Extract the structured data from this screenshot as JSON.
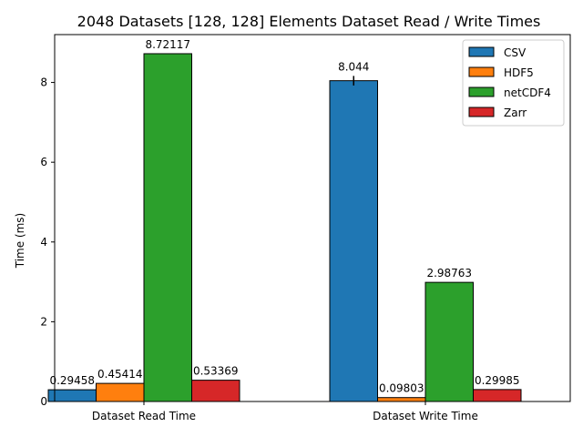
{
  "chart_data": {
    "type": "bar",
    "title": "2048 Datasets [128, 128] Elements Dataset Read / Write Times",
    "xlabel": "",
    "ylabel": "Time (ms)",
    "ylim": [
      0,
      9.2
    ],
    "yticks": [
      "0",
      "2",
      "4",
      "6",
      "8"
    ],
    "grid": false,
    "legend_position": "top-right",
    "categories": [
      "Dataset Read Time",
      "Dataset Write Time"
    ],
    "series": [
      {
        "name": "CSV",
        "color": "#1f77b4",
        "values": [
          0.29458,
          8.044
        ],
        "labels": [
          "0.29458",
          "8.044"
        ],
        "errors": [
          0,
          0.12
        ]
      },
      {
        "name": "HDF5",
        "color": "#ff7f0e",
        "values": [
          0.45414,
          0.09803
        ],
        "labels": [
          "0.45414",
          "0.09803"
        ],
        "errors": [
          0,
          0
        ]
      },
      {
        "name": "netCDF4",
        "color": "#2ca02c",
        "values": [
          8.72117,
          2.98763
        ],
        "labels": [
          "8.72117",
          "2.98763"
        ],
        "errors": [
          0,
          0
        ]
      },
      {
        "name": "Zarr",
        "color": "#d62728",
        "values": [
          0.53369,
          0.29985
        ],
        "labels": [
          "0.53369",
          "0.29985"
        ],
        "errors": [
          0,
          0
        ]
      }
    ]
  }
}
